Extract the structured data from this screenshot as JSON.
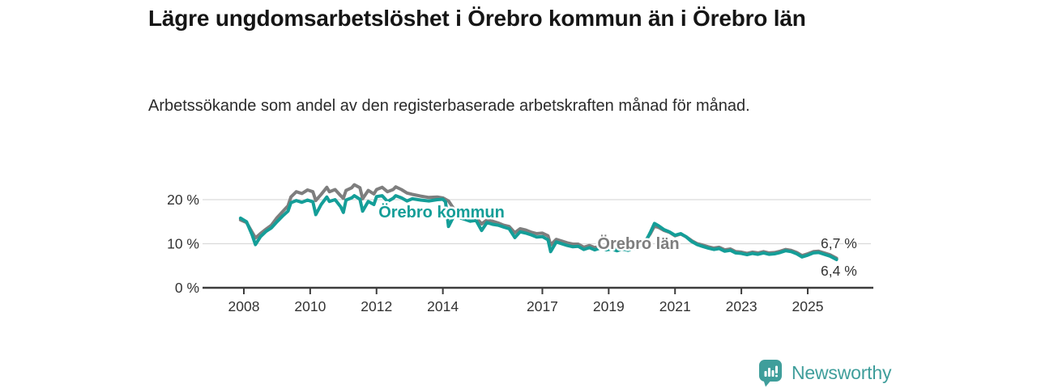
{
  "title": "Lägre ungdomsarbetslöshet i Örebro kommun än i Örebro län",
  "subtitle": "Arbetssökande som andel av den registerbaserade arbetskraften månad för månad.",
  "branding": {
    "name": "Newsworthy",
    "icon": "newsworthy-speech-bubble-chart-icon",
    "color": "#3f9e9b"
  },
  "colors": {
    "kommun_line": "#149e98",
    "lan_line": "#7e7e7e",
    "gridline": "#d9d9d9",
    "axis": "#3c3c3c",
    "tick_text": "#333333"
  },
  "chart_data": {
    "type": "line",
    "title": "Lägre ungdomsarbetslöshet i Örebro kommun än i Örebro län",
    "subtitle": "Arbetssökande som andel av den registerbaserade arbetskraften månad för månad.",
    "xlabel": "",
    "ylabel": "",
    "ylim": [
      0,
      25
    ],
    "grid": "horizontal",
    "legend_position": "inline-labels",
    "yticks": [
      {
        "v": 0,
        "label": "0 %",
        "grid": false
      },
      {
        "v": 10,
        "label": "10 %",
        "grid": true
      },
      {
        "v": 20,
        "label": "20 %",
        "grid": true
      }
    ],
    "xticks": [
      {
        "year": 2008,
        "label": "2008"
      },
      {
        "year": 2010,
        "label": "2010"
      },
      {
        "year": 2012,
        "label": "2012"
      },
      {
        "year": 2014,
        "label": "2014"
      },
      {
        "year": 2017,
        "label": "2017"
      },
      {
        "year": 2019,
        "label": "2019"
      },
      {
        "year": 2021,
        "label": "2021"
      },
      {
        "year": 2023,
        "label": "2023"
      },
      {
        "year": 2025,
        "label": "2025"
      }
    ],
    "series": [
      {
        "name": "Örebro kommun",
        "color": "#149e98",
        "end_label": "6,4 %",
        "end_value": 6.4,
        "points": [
          [
            2007.9,
            15.8
          ],
          [
            2008.08,
            15.0
          ],
          [
            2008.25,
            12.0
          ],
          [
            2008.35,
            9.8
          ],
          [
            2008.5,
            11.6
          ],
          [
            2008.67,
            12.8
          ],
          [
            2008.83,
            13.6
          ],
          [
            2009.0,
            15.0
          ],
          [
            2009.17,
            16.3
          ],
          [
            2009.33,
            17.4
          ],
          [
            2009.42,
            19.3
          ],
          [
            2009.58,
            19.8
          ],
          [
            2009.75,
            19.4
          ],
          [
            2009.92,
            19.9
          ],
          [
            2010.08,
            19.5
          ],
          [
            2010.17,
            16.6
          ],
          [
            2010.33,
            18.9
          ],
          [
            2010.5,
            20.6
          ],
          [
            2010.58,
            19.6
          ],
          [
            2010.75,
            20.0
          ],
          [
            2010.92,
            18.4
          ],
          [
            2011.0,
            17.1
          ],
          [
            2011.08,
            19.9
          ],
          [
            2011.25,
            20.4
          ],
          [
            2011.33,
            20.9
          ],
          [
            2011.5,
            20.1
          ],
          [
            2011.58,
            17.4
          ],
          [
            2011.75,
            19.6
          ],
          [
            2011.92,
            18.9
          ],
          [
            2012.0,
            20.7
          ],
          [
            2012.17,
            20.9
          ],
          [
            2012.33,
            19.6
          ],
          [
            2012.5,
            20.3
          ],
          [
            2012.58,
            20.9
          ],
          [
            2012.75,
            20.4
          ],
          [
            2012.92,
            19.7
          ],
          [
            2013.08,
            20.2
          ],
          [
            2013.33,
            19.9
          ],
          [
            2013.58,
            19.7
          ],
          [
            2013.83,
            20.0
          ],
          [
            2014.0,
            20.1
          ],
          [
            2014.08,
            19.5
          ],
          [
            2014.17,
            13.9
          ],
          [
            2014.33,
            16.3
          ],
          [
            2014.5,
            15.9
          ],
          [
            2014.67,
            15.5
          ],
          [
            2014.83,
            15.1
          ],
          [
            2015.0,
            15.3
          ],
          [
            2015.17,
            13.0
          ],
          [
            2015.33,
            14.8
          ],
          [
            2015.5,
            14.4
          ],
          [
            2015.67,
            14.2
          ],
          [
            2015.83,
            13.8
          ],
          [
            2016.0,
            13.4
          ],
          [
            2016.17,
            11.4
          ],
          [
            2016.33,
            12.7
          ],
          [
            2016.5,
            12.4
          ],
          [
            2016.67,
            12.0
          ],
          [
            2016.83,
            11.5
          ],
          [
            2017.0,
            11.6
          ],
          [
            2017.17,
            10.9
          ],
          [
            2017.25,
            8.2
          ],
          [
            2017.42,
            10.4
          ],
          [
            2017.58,
            10.0
          ],
          [
            2017.75,
            9.6
          ],
          [
            2017.92,
            9.3
          ],
          [
            2018.08,
            9.4
          ],
          [
            2018.25,
            8.7
          ],
          [
            2018.42,
            9.1
          ],
          [
            2018.58,
            8.6
          ],
          [
            2018.75,
            9.0
          ],
          [
            2018.92,
            8.6
          ],
          [
            2019.08,
            8.8
          ],
          [
            2019.25,
            8.4
          ],
          [
            2019.42,
            8.8
          ],
          [
            2019.58,
            8.5
          ],
          [
            2019.75,
            8.9
          ],
          [
            2019.92,
            9.3
          ],
          [
            2020.08,
            10.0
          ],
          [
            2020.25,
            12.5
          ],
          [
            2020.38,
            14.6
          ],
          [
            2020.5,
            14.1
          ],
          [
            2020.67,
            13.2
          ],
          [
            2020.83,
            12.7
          ],
          [
            2021.0,
            11.9
          ],
          [
            2021.17,
            12.3
          ],
          [
            2021.33,
            11.6
          ],
          [
            2021.5,
            10.5
          ],
          [
            2021.67,
            9.8
          ],
          [
            2021.83,
            9.4
          ],
          [
            2022.0,
            9.0
          ],
          [
            2022.17,
            8.7
          ],
          [
            2022.33,
            8.9
          ],
          [
            2022.5,
            8.3
          ],
          [
            2022.67,
            8.5
          ],
          [
            2022.83,
            7.9
          ],
          [
            2023.0,
            7.8
          ],
          [
            2023.17,
            7.5
          ],
          [
            2023.33,
            7.8
          ],
          [
            2023.5,
            7.6
          ],
          [
            2023.67,
            7.9
          ],
          [
            2023.83,
            7.6
          ],
          [
            2024.0,
            7.7
          ],
          [
            2024.17,
            8.0
          ],
          [
            2024.33,
            8.4
          ],
          [
            2024.5,
            8.2
          ],
          [
            2024.67,
            7.7
          ],
          [
            2024.83,
            7.0
          ],
          [
            2025.0,
            7.4
          ],
          [
            2025.17,
            7.9
          ],
          [
            2025.33,
            8.0
          ],
          [
            2025.5,
            7.6
          ],
          [
            2025.67,
            7.2
          ],
          [
            2025.87,
            6.4
          ]
        ]
      },
      {
        "name": "Örebro län",
        "color": "#7e7e7e",
        "end_label": "6,7 %",
        "end_value": 6.7,
        "points": [
          [
            2007.9,
            15.4
          ],
          [
            2008.08,
            14.8
          ],
          [
            2008.25,
            12.6
          ],
          [
            2008.35,
            11.3
          ],
          [
            2008.5,
            12.3
          ],
          [
            2008.67,
            13.3
          ],
          [
            2008.83,
            14.2
          ],
          [
            2009.0,
            15.9
          ],
          [
            2009.17,
            17.3
          ],
          [
            2009.33,
            18.6
          ],
          [
            2009.42,
            20.6
          ],
          [
            2009.58,
            21.8
          ],
          [
            2009.75,
            21.4
          ],
          [
            2009.92,
            22.2
          ],
          [
            2010.08,
            21.8
          ],
          [
            2010.17,
            19.8
          ],
          [
            2010.33,
            21.2
          ],
          [
            2010.5,
            22.8
          ],
          [
            2010.58,
            21.8
          ],
          [
            2010.75,
            22.3
          ],
          [
            2010.92,
            20.9
          ],
          [
            2011.0,
            20.3
          ],
          [
            2011.08,
            22.1
          ],
          [
            2011.25,
            22.7
          ],
          [
            2011.33,
            23.4
          ],
          [
            2011.5,
            22.7
          ],
          [
            2011.58,
            20.2
          ],
          [
            2011.75,
            22.1
          ],
          [
            2011.92,
            21.3
          ],
          [
            2012.0,
            22.3
          ],
          [
            2012.17,
            22.8
          ],
          [
            2012.33,
            21.8
          ],
          [
            2012.5,
            22.3
          ],
          [
            2012.58,
            22.9
          ],
          [
            2012.75,
            22.3
          ],
          [
            2012.92,
            21.5
          ],
          [
            2013.08,
            21.2
          ],
          [
            2013.33,
            20.8
          ],
          [
            2013.58,
            20.5
          ],
          [
            2013.83,
            20.6
          ],
          [
            2014.0,
            20.4
          ],
          [
            2014.17,
            19.7
          ],
          [
            2014.33,
            17.9
          ],
          [
            2014.5,
            17.3
          ],
          [
            2014.67,
            16.7
          ],
          [
            2014.83,
            16.1
          ],
          [
            2015.0,
            15.9
          ],
          [
            2015.17,
            14.5
          ],
          [
            2015.33,
            15.4
          ],
          [
            2015.5,
            15.1
          ],
          [
            2015.67,
            14.7
          ],
          [
            2015.83,
            14.2
          ],
          [
            2016.0,
            13.9
          ],
          [
            2016.17,
            12.5
          ],
          [
            2016.33,
            13.4
          ],
          [
            2016.5,
            13.1
          ],
          [
            2016.67,
            12.6
          ],
          [
            2016.83,
            12.3
          ],
          [
            2017.0,
            12.4
          ],
          [
            2017.17,
            11.8
          ],
          [
            2017.25,
            9.7
          ],
          [
            2017.42,
            11.0
          ],
          [
            2017.58,
            10.6
          ],
          [
            2017.75,
            10.2
          ],
          [
            2017.92,
            9.9
          ],
          [
            2018.08,
            9.9
          ],
          [
            2018.25,
            9.2
          ],
          [
            2018.42,
            9.6
          ],
          [
            2018.58,
            9.1
          ],
          [
            2018.75,
            9.5
          ],
          [
            2018.92,
            9.1
          ],
          [
            2019.08,
            9.3
          ],
          [
            2019.25,
            8.9
          ],
          [
            2019.42,
            9.3
          ],
          [
            2019.58,
            9.0
          ],
          [
            2019.75,
            9.4
          ],
          [
            2019.92,
            9.8
          ],
          [
            2020.08,
            10.4
          ],
          [
            2020.25,
            12.2
          ],
          [
            2020.38,
            14.0
          ],
          [
            2020.5,
            13.7
          ],
          [
            2020.67,
            13.0
          ],
          [
            2020.83,
            12.6
          ],
          [
            2021.0,
            11.8
          ],
          [
            2021.17,
            12.2
          ],
          [
            2021.33,
            11.6
          ],
          [
            2021.5,
            10.7
          ],
          [
            2021.67,
            10.0
          ],
          [
            2021.83,
            9.7
          ],
          [
            2022.0,
            9.3
          ],
          [
            2022.17,
            9.0
          ],
          [
            2022.33,
            9.2
          ],
          [
            2022.5,
            8.6
          ],
          [
            2022.67,
            8.8
          ],
          [
            2022.83,
            8.2
          ],
          [
            2023.0,
            8.1
          ],
          [
            2023.17,
            7.8
          ],
          [
            2023.33,
            8.1
          ],
          [
            2023.5,
            7.9
          ],
          [
            2023.67,
            8.2
          ],
          [
            2023.83,
            7.9
          ],
          [
            2024.0,
            8.0
          ],
          [
            2024.17,
            8.3
          ],
          [
            2024.33,
            8.7
          ],
          [
            2024.5,
            8.5
          ],
          [
            2024.67,
            8.0
          ],
          [
            2024.83,
            7.3
          ],
          [
            2025.0,
            7.7
          ],
          [
            2025.17,
            8.2
          ],
          [
            2025.33,
            8.3
          ],
          [
            2025.5,
            7.9
          ],
          [
            2025.67,
            7.5
          ],
          [
            2025.87,
            6.7
          ]
        ]
      }
    ]
  }
}
